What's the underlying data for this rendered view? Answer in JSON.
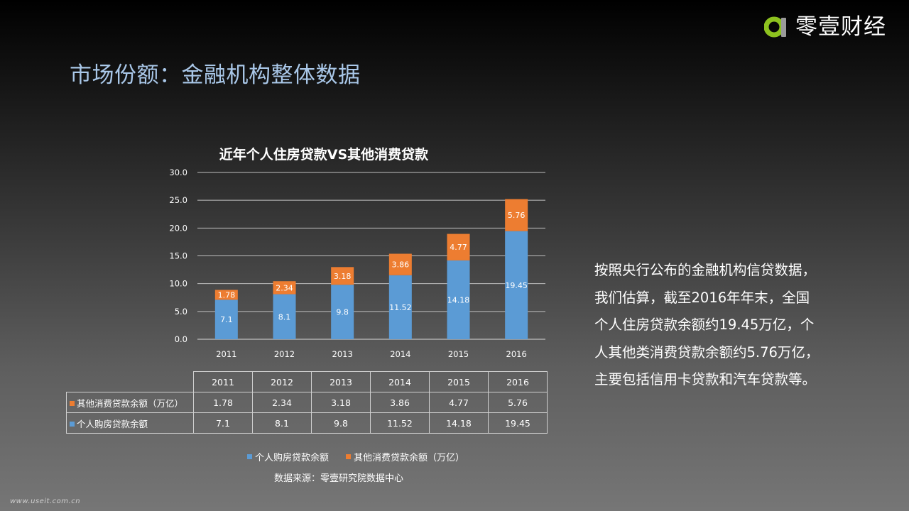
{
  "brand": {
    "name": "零壹财经",
    "logo_icon": "lingyi-logo-icon",
    "logo_colors": [
      "#8dc21f",
      "#9a9a9a"
    ]
  },
  "page": {
    "title": "市场份额：金融机构整体数据"
  },
  "chart_data": {
    "type": "bar",
    "stacked": true,
    "title": "近年个人住房贷款VS其他消费贷款",
    "categories": [
      "2011",
      "2012",
      "2013",
      "2014",
      "2015",
      "2016"
    ],
    "series": [
      {
        "name": "个人购房贷款余额",
        "color": "#5b9bd5",
        "values": [
          7.1,
          8.1,
          9.8,
          11.52,
          14.18,
          19.45
        ]
      },
      {
        "name": "其他消费贷款余额（万亿）",
        "color": "#ed7d31",
        "values": [
          1.78,
          2.34,
          3.18,
          3.86,
          4.77,
          5.76
        ]
      }
    ],
    "ylim": [
      0,
      30
    ],
    "yticks": [
      "0.0",
      "5.0",
      "10.0",
      "15.0",
      "20.0",
      "25.0",
      "30.0"
    ],
    "grid": true,
    "legend_placement": "bottom"
  },
  "data_table": {
    "header": [
      "2011",
      "2012",
      "2013",
      "2014",
      "2015",
      "2016"
    ],
    "rows": [
      {
        "label": "其他消费贷款余额（万亿）",
        "color": "#ed7d31",
        "values": [
          "1.78",
          "2.34",
          "3.18",
          "3.86",
          "4.77",
          "5.76"
        ]
      },
      {
        "label": "个人购房贷款余额",
        "color": "#5b9bd5",
        "values": [
          "7.1",
          "8.1",
          "9.8",
          "11.52",
          "14.18",
          "19.45"
        ]
      }
    ]
  },
  "legend": [
    {
      "label": "个人购房贷款余额",
      "color": "#5b9bd5"
    },
    {
      "label": "其他消费贷款余额（万亿）",
      "color": "#ed7d31"
    }
  ],
  "source_note": "数据来源：零壹研究院数据中心",
  "description_lines": [
    "按照央行公布的金融机构信贷数据，",
    "我们估算，截至2016年年末，全国",
    "个人住房贷款余额约19.45万亿，个",
    "人其他类消费贷款余额约5.76万亿，",
    "主要包括信用卡贷款和汽车贷款等。"
  ],
  "watermark": "www.useit.com.cn"
}
